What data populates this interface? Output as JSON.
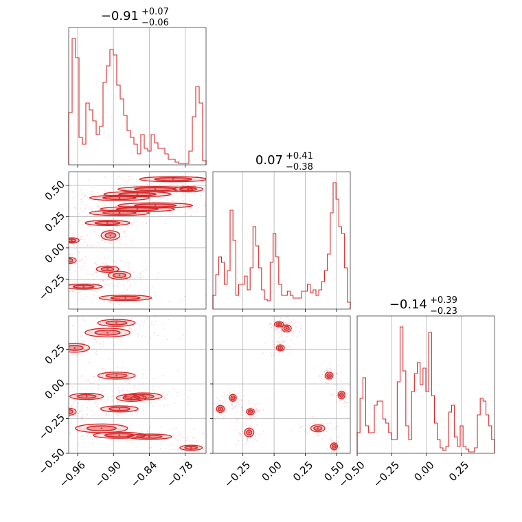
{
  "chart_data": {
    "type": "corner",
    "color": "#d62728",
    "titles": [
      {
        "value": "−0.91",
        "upper": "+0.07",
        "lower": "−0.06"
      },
      {
        "value": "0.07",
        "upper": "+0.41",
        "lower": "−0.38"
      },
      {
        "value": "−0.14",
        "upper": "+0.39",
        "lower": "−0.23"
      }
    ],
    "params": [
      {
        "range": [
          -0.975,
          -0.745
        ],
        "ticks": [
          -0.96,
          -0.9,
          -0.84,
          -0.78
        ],
        "tick_labels": [
          "−0.96",
          "−0.90",
          "−0.84",
          "−0.78"
        ]
      },
      {
        "range": [
          -0.49,
          0.61
        ],
        "ticks": [
          -0.25,
          0.0,
          0.25,
          0.5
        ],
        "tick_labels": [
          "−0.25",
          "0.00",
          "0.25",
          "0.50"
        ]
      },
      {
        "range": [
          -0.5,
          0.49
        ],
        "ticks": [
          -0.5,
          -0.25,
          0.0,
          0.25
        ],
        "tick_labels": [
          "−0.50",
          "−0.25",
          "0.00",
          "0.25"
        ]
      }
    ],
    "histograms": [
      {
        "param": 0,
        "bins": 40,
        "heights": [
          0.38,
          0.92,
          0.78,
          0.2,
          0.15,
          0.45,
          0.4,
          0.32,
          0.22,
          0.28,
          0.6,
          0.72,
          0.84,
          0.8,
          0.58,
          0.48,
          0.36,
          0.25,
          0.2,
          0.15,
          0.08,
          0.22,
          0.12,
          0.1,
          0.22,
          0.16,
          0.12,
          0.12,
          0.08,
          0.04,
          0.04,
          0.02,
          0.01,
          0.01,
          0.01,
          0.1,
          0.35,
          0.57,
          0.45,
          0.03
        ]
      },
      {
        "param": 1,
        "bins": 48,
        "heights": [
          0.1,
          0.25,
          0.38,
          0.34,
          0.18,
          0.28,
          0.72,
          0.5,
          0.1,
          0.18,
          0.18,
          0.24,
          0.14,
          0.3,
          0.6,
          0.46,
          0.3,
          0.14,
          0.07,
          0.06,
          0.34,
          0.55,
          0.38,
          0.18,
          0.1,
          0.1,
          0.13,
          0.1,
          0.08,
          0.08,
          0.08,
          0.13,
          0.13,
          0.18,
          0.12,
          0.14,
          0.1,
          0.14,
          0.2,
          0.28,
          0.4,
          0.7,
          0.92,
          0.8,
          0.6,
          0.55,
          0.3,
          0.05
        ]
      },
      {
        "param": 2,
        "bins": 48,
        "heights": [
          0.15,
          0.4,
          0.55,
          0.2,
          0.15,
          0.15,
          0.35,
          0.38,
          0.38,
          0.25,
          0.22,
          0.15,
          0.1,
          0.1,
          0.52,
          0.92,
          0.6,
          0.2,
          0.1,
          0.45,
          0.58,
          0.66,
          0.5,
          0.62,
          0.45,
          0.88,
          0.42,
          0.22,
          0.1,
          0.04,
          0.02,
          0.05,
          0.3,
          0.35,
          0.12,
          0.05,
          0.2,
          0.05,
          0.03,
          0.01,
          0.01,
          0.04,
          0.28,
          0.4,
          0.38,
          0.28,
          0.2,
          0.1
        ]
      }
    ],
    "clusters": [
      {
        "x": 0,
        "y": 1,
        "points": [
          [
            -0.89,
            0.4,
            0.08,
            0.018
          ],
          [
            -0.86,
            0.43,
            0.09,
            0.02
          ],
          [
            -0.83,
            0.47,
            0.1,
            0.022
          ],
          [
            -0.8,
            0.55,
            0.09,
            0.018
          ],
          [
            -0.89,
            0.28,
            0.08,
            0.02
          ],
          [
            -0.86,
            0.31,
            0.1,
            0.02
          ],
          [
            -0.83,
            0.34,
            0.1,
            0.02
          ],
          [
            -0.91,
            0.2,
            0.06,
            0.02
          ],
          [
            -0.905,
            0.1,
            0.025,
            0.06
          ],
          [
            -0.97,
            0.06,
            0.02,
            0.03
          ],
          [
            -0.975,
            -0.1,
            0.02,
            0.04
          ],
          [
            -0.91,
            -0.17,
            0.03,
            0.04
          ],
          [
            -0.89,
            -0.22,
            0.03,
            0.05
          ],
          [
            -0.95,
            -0.31,
            0.05,
            0.03
          ],
          [
            -0.88,
            -0.4,
            0.07,
            0.035
          ],
          [
            -0.775,
            0.47,
            0.04,
            0.03
          ]
        ]
      },
      {
        "x": 0,
        "y": 2,
        "points": [
          [
            -0.965,
            0.26,
            0.04,
            0.05
          ],
          [
            -0.91,
            0.37,
            0.06,
            0.05
          ],
          [
            -0.895,
            0.44,
            0.05,
            0.04
          ],
          [
            -0.895,
            0.06,
            0.05,
            0.04
          ],
          [
            -0.945,
            -0.09,
            0.045,
            0.035
          ],
          [
            -0.87,
            -0.1,
            0.04,
            0.04
          ],
          [
            -0.85,
            -0.09,
            0.05,
            0.04
          ],
          [
            -0.89,
            -0.18,
            0.05,
            0.035
          ],
          [
            -0.975,
            -0.2,
            0.02,
            0.04
          ],
          [
            -0.92,
            -0.32,
            0.07,
            0.05
          ],
          [
            -0.89,
            -0.37,
            0.07,
            0.035
          ],
          [
            -0.84,
            -0.38,
            0.06,
            0.03
          ],
          [
            -0.77,
            -0.46,
            0.03,
            0.02
          ]
        ]
      },
      {
        "x": 1,
        "y": 2,
        "points": [
          [
            0.04,
            0.43,
            0.06,
            0.03
          ],
          [
            0.1,
            0.4,
            0.06,
            0.04
          ],
          [
            0.05,
            0.26,
            0.05,
            0.035
          ],
          [
            0.44,
            0.06,
            0.05,
            0.04
          ],
          [
            0.54,
            -0.08,
            0.04,
            0.045
          ],
          [
            -0.33,
            -0.1,
            0.04,
            0.04
          ],
          [
            -0.43,
            -0.18,
            0.05,
            0.04
          ],
          [
            -0.19,
            -0.2,
            0.05,
            0.035
          ],
          [
            0.35,
            -0.32,
            0.09,
            0.04
          ],
          [
            0.48,
            -0.45,
            0.03,
            0.04
          ],
          [
            -0.2,
            -0.35,
            0.06,
            0.05
          ]
        ]
      }
    ]
  }
}
